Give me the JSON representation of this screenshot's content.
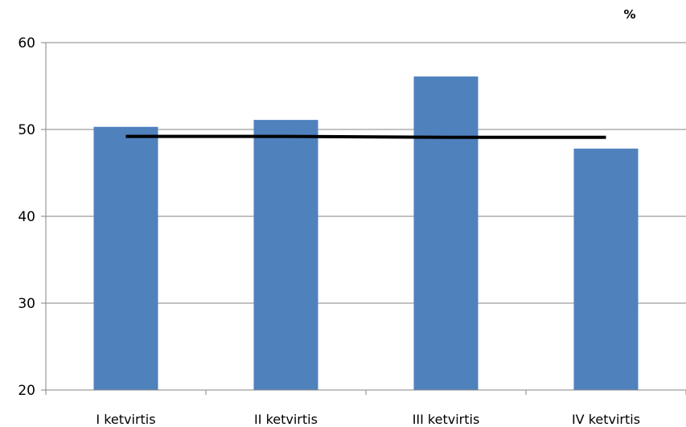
{
  "chart_data": {
    "type": "bar",
    "title": "",
    "xlabel": "",
    "ylabel": "",
    "unit_label": "%",
    "categories": [
      "I ketvirtis",
      "II ketvirtis",
      "III ketvirtis",
      "IV ketvirtis"
    ],
    "series": [
      {
        "type": "bar",
        "values": [
          50.3,
          51.1,
          56.1,
          47.8
        ]
      },
      {
        "type": "line",
        "values": [
          49.2,
          49.2,
          49.1,
          49.1
        ]
      }
    ],
    "ylim": [
      20,
      60
    ],
    "yticks": [
      20,
      30,
      40,
      50,
      60
    ],
    "grid": true,
    "colors": {
      "bar": "#4f81bd",
      "line": "#000000",
      "grid": "#868686",
      "axis": "#868686"
    }
  }
}
